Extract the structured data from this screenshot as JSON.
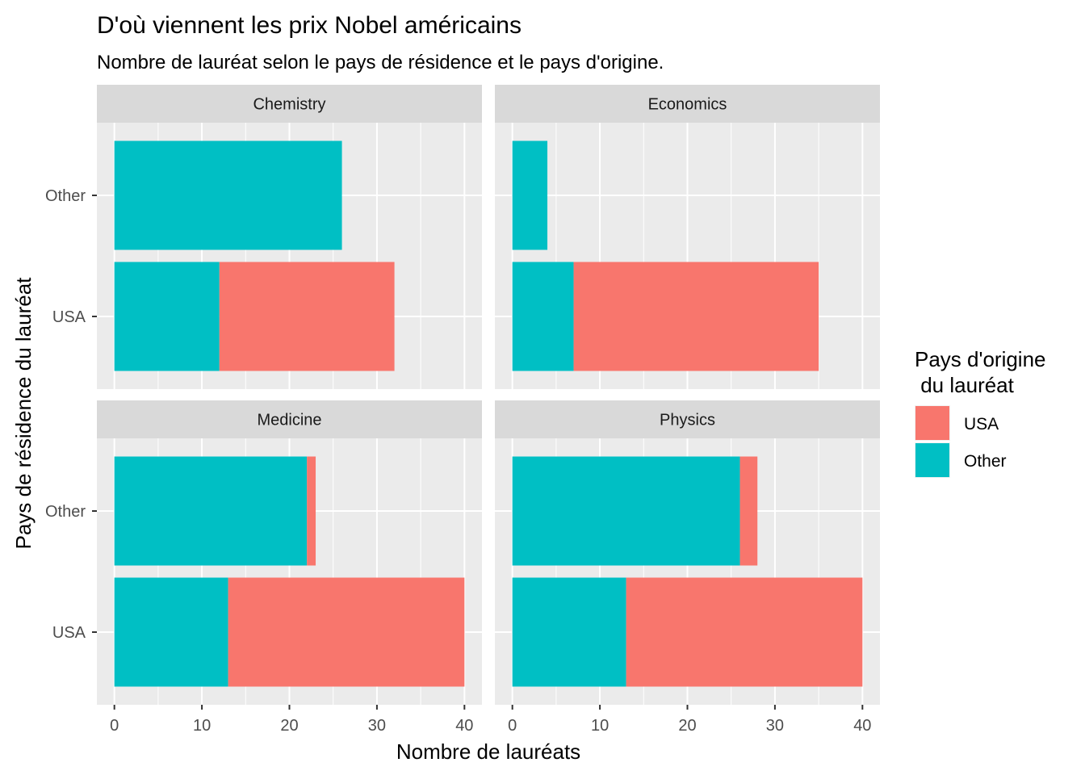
{
  "chart_data": {
    "type": "bar",
    "orientation": "horizontal",
    "stacked": true,
    "title": "D'où viennent les prix Nobel américains",
    "subtitle": "Nombre de lauréat selon le pays de résidence et le pays d'origine.",
    "xlabel": "Nombre de lauréats",
    "ylabel": "Pays de résidence du lauréat",
    "xlim": [
      -2,
      42
    ],
    "x_ticks": [
      0,
      10,
      20,
      30,
      40
    ],
    "categories": [
      "USA",
      "Other"
    ],
    "legend": {
      "title_lines": [
        "Pays d'origine",
        " du lauréat"
      ],
      "position": "right",
      "items": [
        {
          "label": "USA",
          "color": "#F8766D"
        },
        {
          "label": "Other",
          "color": "#00BFC4"
        }
      ]
    },
    "colors": {
      "USA": "#F8766D",
      "Other": "#00BFC4"
    },
    "grid": true,
    "facets": [
      {
        "name": "Chemistry",
        "rows": [
          {
            "category": "USA",
            "segments": [
              {
                "series": "Other",
                "value": 12
              },
              {
                "series": "USA",
                "value": 20
              }
            ]
          },
          {
            "category": "Other",
            "segments": [
              {
                "series": "Other",
                "value": 26
              },
              {
                "series": "USA",
                "value": 0
              }
            ]
          }
        ]
      },
      {
        "name": "Economics",
        "rows": [
          {
            "category": "USA",
            "segments": [
              {
                "series": "Other",
                "value": 7
              },
              {
                "series": "USA",
                "value": 28
              }
            ]
          },
          {
            "category": "Other",
            "segments": [
              {
                "series": "Other",
                "value": 4
              },
              {
                "series": "USA",
                "value": 0
              }
            ]
          }
        ]
      },
      {
        "name": "Medicine",
        "rows": [
          {
            "category": "USA",
            "segments": [
              {
                "series": "Other",
                "value": 13
              },
              {
                "series": "USA",
                "value": 27
              }
            ]
          },
          {
            "category": "Other",
            "segments": [
              {
                "series": "Other",
                "value": 22
              },
              {
                "series": "USA",
                "value": 1
              }
            ]
          }
        ]
      },
      {
        "name": "Physics",
        "rows": [
          {
            "category": "USA",
            "segments": [
              {
                "series": "Other",
                "value": 13
              },
              {
                "series": "USA",
                "value": 27
              }
            ]
          },
          {
            "category": "Other",
            "segments": [
              {
                "series": "Other",
                "value": 26
              },
              {
                "series": "USA",
                "value": 2
              }
            ]
          }
        ]
      }
    ]
  }
}
